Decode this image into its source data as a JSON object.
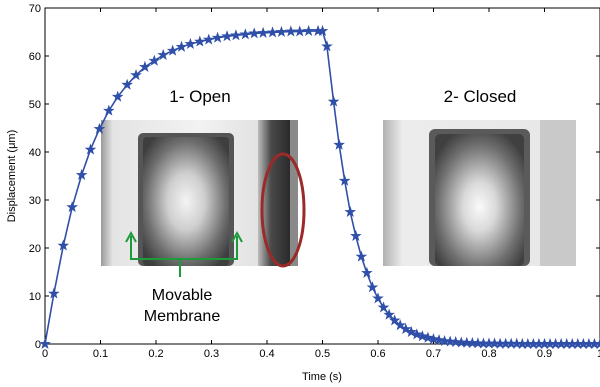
{
  "chart_data": {
    "type": "line",
    "title": "",
    "xlabel": "Time (s)",
    "ylabel": "Displacement (μm)",
    "xlim": [
      0,
      1
    ],
    "ylim": [
      0,
      70
    ],
    "xticks": [
      "0",
      "0.1",
      "0.2",
      "0.3",
      "0.4",
      "0.5",
      "0.6",
      "0.7",
      "0.8",
      "0.9",
      "1"
    ],
    "yticks": [
      "0",
      "10",
      "20",
      "30",
      "40",
      "50",
      "60",
      "70"
    ],
    "grid": false,
    "marker": "star",
    "color": "#2f4fa8",
    "series": [
      {
        "name": "",
        "x": [
          0,
          0.016,
          0.033,
          0.049,
          0.066,
          0.082,
          0.098,
          0.115,
          0.131,
          0.148,
          0.164,
          0.18,
          0.197,
          0.213,
          0.23,
          0.246,
          0.262,
          0.279,
          0.295,
          0.311,
          0.328,
          0.344,
          0.361,
          0.377,
          0.393,
          0.41,
          0.426,
          0.443,
          0.459,
          0.475,
          0.492,
          0.5,
          0.508,
          0.52,
          0.53,
          0.54,
          0.55,
          0.56,
          0.57,
          0.58,
          0.59,
          0.6,
          0.61,
          0.62,
          0.63,
          0.64,
          0.65,
          0.66,
          0.67,
          0.68,
          0.69,
          0.7,
          0.71,
          0.72,
          0.73,
          0.74,
          0.75,
          0.76,
          0.77,
          0.78,
          0.79,
          0.8,
          0.81,
          0.82,
          0.83,
          0.84,
          0.85,
          0.86,
          0.87,
          0.88,
          0.89,
          0.9,
          0.91,
          0.92,
          0.93,
          0.94,
          0.95,
          0.96,
          0.97,
          0.98,
          0.99,
          1.0
        ],
        "y": [
          0,
          10.5,
          20.5,
          28.5,
          35.2,
          40.5,
          44.8,
          48.6,
          51.5,
          54.0,
          56.0,
          57.7,
          59.0,
          60.2,
          61.1,
          61.9,
          62.5,
          63.0,
          63.4,
          63.8,
          64.1,
          64.3,
          64.5,
          64.7,
          64.8,
          64.9,
          65.0,
          65.1,
          65.1,
          65.2,
          65.2,
          65.2,
          62.0,
          50.5,
          41.5,
          34.0,
          27.5,
          22.5,
          18.2,
          14.8,
          11.8,
          9.5,
          7.6,
          6.1,
          4.9,
          3.9,
          3.1,
          2.5,
          2.0,
          1.6,
          1.3,
          1.0,
          0.8,
          0.6,
          0.5,
          0.4,
          0.3,
          0.25,
          0.2,
          0.15,
          0.1,
          0.1,
          0.1,
          0.05,
          0.05,
          0.05,
          0.05,
          0,
          0,
          0,
          0,
          0,
          0,
          0,
          0,
          0,
          0,
          0,
          0,
          0,
          0,
          0
        ]
      }
    ]
  },
  "insets": {
    "open_title": "1- Open",
    "closed_title": "2- Closed",
    "annotation_line1": "Movable",
    "annotation_line2": "Membrane",
    "highlight_color": "#9b2a2a",
    "arrow_color": "#1f9a3a"
  }
}
